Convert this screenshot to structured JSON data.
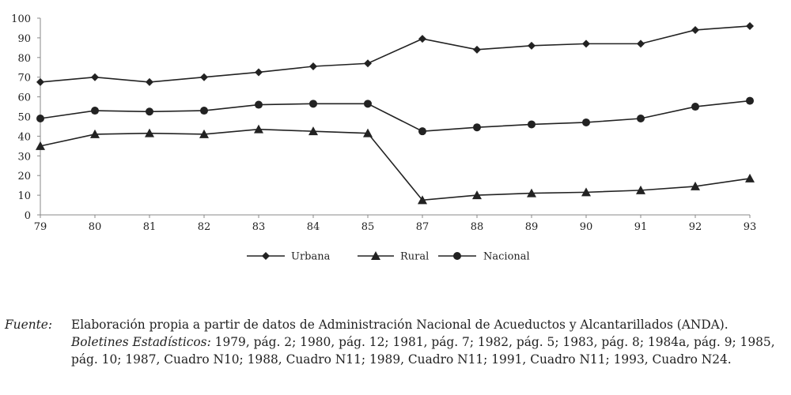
{
  "chart_data": {
    "type": "line",
    "categories": [
      "79",
      "80",
      "81",
      "82",
      "83",
      "84",
      "85",
      "87",
      "88",
      "89",
      "90",
      "91",
      "92",
      "93"
    ],
    "ylim": [
      0,
      100
    ],
    "yticks": [
      0,
      10,
      20,
      30,
      40,
      50,
      60,
      70,
      80,
      90,
      100
    ],
    "grid": false,
    "legend_position": "bottom",
    "series": [
      {
        "name": "Urbana",
        "marker": "diamond",
        "values": [
          67.5,
          70,
          67.5,
          70,
          72.5,
          75.5,
          77,
          89.5,
          84,
          86,
          87,
          87,
          94,
          96
        ]
      },
      {
        "name": "Rural",
        "marker": "triangle",
        "values": [
          35,
          41,
          41.5,
          41,
          43.5,
          42.5,
          41.5,
          7.5,
          10,
          11,
          11.5,
          12.5,
          14.5,
          18.5
        ]
      },
      {
        "name": "Nacional",
        "marker": "circle",
        "values": [
          49,
          53,
          52.5,
          53,
          56,
          56.5,
          56.5,
          42.5,
          44.5,
          46,
          47,
          49,
          55,
          58
        ]
      }
    ]
  },
  "source": {
    "label": "Fuente:",
    "line1": "Elaboración propia a partir de datos de Administración Nacional de Acueductos y Alcantarillados (ANDA).",
    "line2_italic": "Boletines Estadísticos:",
    "line2_rest": " 1979, pág. 2; 1980, pág. 12; 1981, pág. 7; 1982, pág. 5; 1983, pág. 8; 1984a, pág. 9; 1985,",
    "line3": "pág. 10; 1987, Cuadro N10; 1988, Cuadro N11; 1989, Cuadro N11; 1991, Cuadro N11; 1993, Cuadro N24."
  },
  "colors": {
    "line": "#222222",
    "axis": "#888888"
  }
}
